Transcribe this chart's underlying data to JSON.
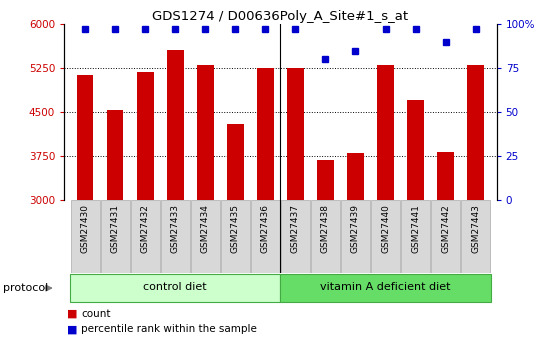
{
  "title": "GDS1274 / D00636Poly_A_Site#1_s_at",
  "samples": [
    "GSM27430",
    "GSM27431",
    "GSM27432",
    "GSM27433",
    "GSM27434",
    "GSM27435",
    "GSM27436",
    "GSM27437",
    "GSM27438",
    "GSM27439",
    "GSM27440",
    "GSM27441",
    "GSM27442",
    "GSM27443"
  ],
  "counts": [
    5130,
    4540,
    5185,
    5560,
    5295,
    4290,
    5250,
    5255,
    3680,
    3810,
    5310,
    4710,
    3820,
    5310
  ],
  "percentile_ranks": [
    97,
    97,
    97,
    97,
    97,
    97,
    97,
    97,
    80,
    85,
    97,
    97,
    90,
    97
  ],
  "n_control": 7,
  "n_total": 14,
  "ylim_left": [
    3000,
    6000
  ],
  "ylim_right": [
    0,
    100
  ],
  "yticks_left": [
    3000,
    3750,
    4500,
    5250,
    6000
  ],
  "yticks_right": [
    0,
    25,
    50,
    75,
    100
  ],
  "yticklabels_right": [
    "0",
    "25",
    "50",
    "75",
    "100%"
  ],
  "bar_color": "#cc0000",
  "dot_color": "#0000cc",
  "control_bg": "#ccffcc",
  "vitA_bg": "#66dd66",
  "label_bg": "#d8d8d8",
  "label_edge": "#aaaaaa",
  "group_edge": "#44aa44",
  "protocol_label": "protocol",
  "group1_label": "control diet",
  "group2_label": "vitamin A deficient diet",
  "legend_count": "count",
  "legend_pct": "percentile rank within the sample",
  "title_fontsize": 9.5,
  "tick_fontsize": 7.5,
  "label_fontsize": 6.5,
  "group_fontsize": 8,
  "proto_fontsize": 8,
  "legend_fontsize": 7.5
}
